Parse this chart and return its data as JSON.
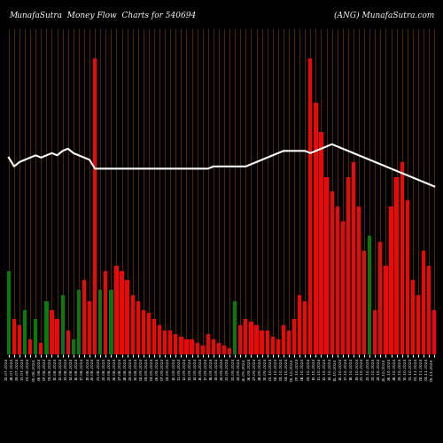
{
  "title_left": "MunafaSutra  Money Flow  Charts for 540694",
  "title_right": "(ANG) MunafaSutra.com",
  "bg_color": "#000000",
  "bar_colors": [
    "green",
    "red",
    "red",
    "green",
    "red",
    "green",
    "red",
    "green",
    "red",
    "red",
    "green",
    "red",
    "green",
    "green",
    "red",
    "red",
    "red",
    "green",
    "red",
    "green",
    "red",
    "red",
    "red",
    "red",
    "red",
    "red",
    "red",
    "red",
    "red",
    "red",
    "red",
    "red",
    "red",
    "red",
    "red",
    "red",
    "red",
    "red",
    "red",
    "red",
    "red",
    "red",
    "green",
    "red",
    "red",
    "red",
    "red",
    "red",
    "red",
    "red",
    "red",
    "red",
    "red",
    "red",
    "red",
    "red",
    "red",
    "red",
    "red",
    "red",
    "red",
    "red",
    "red",
    "red",
    "red",
    "red",
    "red",
    "green",
    "red",
    "red",
    "red",
    "red",
    "red",
    "red",
    "red",
    "red",
    "red",
    "red",
    "red",
    "red"
  ],
  "bar_heights": [
    28,
    12,
    10,
    15,
    5,
    12,
    4,
    18,
    15,
    12,
    20,
    8,
    5,
    22,
    25,
    18,
    100,
    22,
    28,
    22,
    30,
    28,
    25,
    20,
    18,
    15,
    14,
    12,
    10,
    8,
    8,
    7,
    6,
    5,
    5,
    4,
    3,
    7,
    5,
    4,
    3,
    2,
    18,
    10,
    12,
    11,
    10,
    8,
    8,
    6,
    5,
    10,
    8,
    12,
    20,
    18,
    100,
    85,
    75,
    60,
    55,
    50,
    45,
    60,
    65,
    50,
    35,
    40,
    15,
    38,
    30,
    50,
    60,
    65,
    52,
    25,
    20,
    35,
    30,
    15
  ],
  "line_values": [
    62,
    58,
    60,
    61,
    62,
    63,
    62,
    63,
    64,
    63,
    65,
    66,
    64,
    63,
    62,
    61,
    57,
    57,
    57,
    57,
    57,
    57,
    57,
    57,
    57,
    57,
    57,
    57,
    57,
    57,
    57,
    57,
    57,
    57,
    57,
    57,
    57,
    57,
    58,
    58,
    58,
    58,
    58,
    58,
    58,
    59,
    60,
    61,
    62,
    63,
    64,
    65,
    65,
    65,
    65,
    65,
    64,
    65,
    66,
    67,
    68,
    67,
    66,
    65,
    64,
    63,
    62,
    61,
    60,
    59,
    58,
    57,
    56,
    55,
    54,
    53,
    52,
    51,
    50,
    49
  ],
  "n_bars": 80,
  "xlabels": [
    "22-07-2024",
    "28-07-2024",
    "29-07-2024",
    "31-07-2024",
    "01-08-2024",
    "05-08-2024",
    "06-08-2024",
    "07-08-2024",
    "09-08-2024",
    "10-08-2024",
    "12-08-2024",
    "13-08-2024",
    "14-08-2024",
    "16-08-2024",
    "17-08-2024",
    "19-08-2024",
    "20-08-2024",
    "21-08-2024",
    "22-08-2024",
    "23-08-2024",
    "26-08-2024",
    "27-08-2024",
    "28-08-2024",
    "29-08-2024",
    "30-08-2024",
    "02-09-2024",
    "03-09-2024",
    "04-09-2024",
    "06-09-2024",
    "07-09-2024",
    "09-09-2024",
    "10-09-2024",
    "11-09-2024",
    "12-09-2024",
    "13-09-2024",
    "14-09-2024",
    "16-09-2024",
    "17-09-2024",
    "18-09-2024",
    "19-09-2024",
    "20-09-2024",
    "21-09-2024",
    "23-09-2024",
    "24-09-2024",
    "25-09-2024",
    "26-09-2024",
    "27-09-2024",
    "28-09-2024",
    "30-09-2024",
    "01-10-2024",
    "02-10-2024",
    "03-10-2024",
    "04-10-2024",
    "05-10-2024",
    "07-10-2024",
    "08-10-2024",
    "09-10-2024",
    "10-10-2024",
    "11-10-2024",
    "12-10-2024",
    "14-10-2024",
    "15-10-2024",
    "16-10-2024",
    "17-10-2024",
    "18-10-2024",
    "19-10-2024",
    "21-10-2024",
    "22-10-2024",
    "23-10-2024",
    "24-10-2024",
    "25-10-2024",
    "26-10-2024",
    "28-10-2024",
    "29-10-2024",
    "30-10-2024",
    "31-10-2024",
    "01-11-2024",
    "02-11-2024",
    "04-11-2024",
    "05-11-2024"
  ]
}
